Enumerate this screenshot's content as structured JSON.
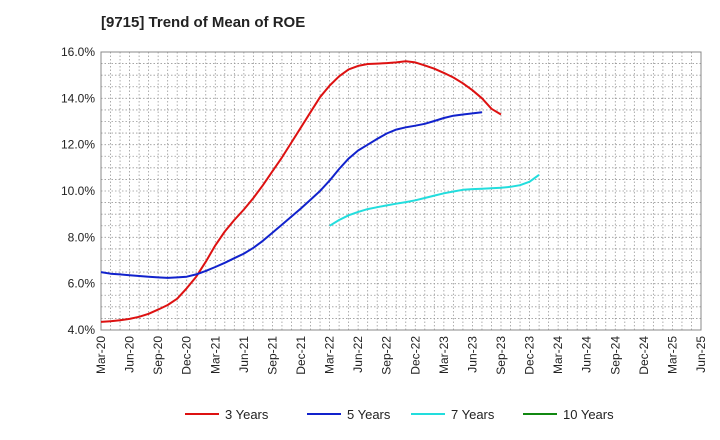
{
  "chart_data": {
    "type": "line",
    "title": "[9715]  Trend of Mean of ROE",
    "xlabel": "",
    "ylabel": "",
    "ylim": [
      4.0,
      16.0
    ],
    "y_ticks": [
      "4.0%",
      "6.0%",
      "8.0%",
      "10.0%",
      "12.0%",
      "14.0%",
      "16.0%"
    ],
    "y_tick_values": [
      4,
      6,
      8,
      10,
      12,
      14,
      16
    ],
    "x_ticks": [
      "Mar-20",
      "Jun-20",
      "Sep-20",
      "Dec-20",
      "Mar-21",
      "Jun-21",
      "Sep-21",
      "Dec-21",
      "Mar-22",
      "Jun-22",
      "Sep-22",
      "Dec-22",
      "Mar-23",
      "Jun-23",
      "Sep-23",
      "Dec-23",
      "Mar-24",
      "Jun-24",
      "Sep-24",
      "Dec-24",
      "Mar-25",
      "Jun-25"
    ],
    "grid": true,
    "legend_position": "bottom",
    "series": [
      {
        "name": "3 Years",
        "color": "#dd1111",
        "start_index": 0,
        "values": [
          4.35,
          4.38,
          4.42,
          4.48,
          4.57,
          4.7,
          4.88,
          5.08,
          5.35,
          5.8,
          6.3,
          6.95,
          7.65,
          8.25,
          8.75,
          9.2,
          9.7,
          10.25,
          10.85,
          11.45,
          12.1,
          12.75,
          13.4,
          14.05,
          14.55,
          14.95,
          15.25,
          15.4,
          15.48,
          15.5,
          15.52,
          15.55,
          15.6,
          15.55,
          15.42,
          15.28,
          15.1,
          14.9,
          14.65,
          14.35,
          14.0,
          13.55,
          13.3
        ]
      },
      {
        "name": "5 Years",
        "color": "#1122cc",
        "start_index": 0,
        "values": [
          6.5,
          6.43,
          6.4,
          6.36,
          6.33,
          6.3,
          6.27,
          6.25,
          6.27,
          6.3,
          6.4,
          6.55,
          6.72,
          6.9,
          7.1,
          7.3,
          7.55,
          7.85,
          8.2,
          8.55,
          8.9,
          9.25,
          9.62,
          10.0,
          10.45,
          10.95,
          11.4,
          11.75,
          12.0,
          12.25,
          12.48,
          12.65,
          12.75,
          12.82,
          12.9,
          13.02,
          13.15,
          13.25,
          13.3,
          13.35,
          13.4
        ]
      },
      {
        "name": "7 Years",
        "color": "#22dddd",
        "start_index": 24,
        "values": [
          8.5,
          8.75,
          8.95,
          9.1,
          9.22,
          9.3,
          9.38,
          9.45,
          9.52,
          9.6,
          9.7,
          9.8,
          9.9,
          9.98,
          10.05,
          10.08,
          10.1,
          10.12,
          10.14,
          10.18,
          10.25,
          10.4,
          10.7
        ]
      },
      {
        "name": "10 Years",
        "color": "#118811",
        "start_index": 0,
        "values": []
      }
    ]
  }
}
